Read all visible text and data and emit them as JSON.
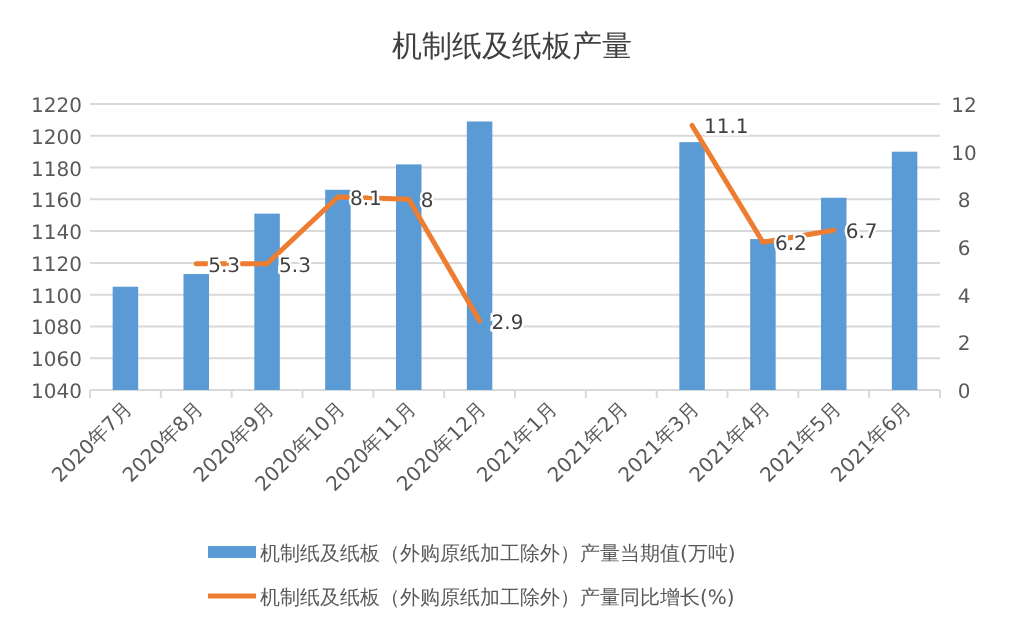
{
  "chart_data": {
    "type": "bar",
    "title": "机制纸及纸板产量",
    "categories": [
      "2020年7月",
      "2020年8月",
      "2020年9月",
      "2020年10月",
      "2020年11月",
      "2020年12月",
      "2021年1月",
      "2021年2月",
      "2021年3月",
      "2021年4月",
      "2021年5月",
      "2021年6月"
    ],
    "series": [
      {
        "name": "机制纸及纸板（外购原纸加工除外）产量当期值(万吨)",
        "color": "#5b9bd5",
        "values": [
          1105,
          1113,
          1151,
          1166,
          1182,
          1209,
          null,
          null,
          1196,
          1135,
          1161,
          1190
        ]
      },
      {
        "name": "机制纸及纸板（外购原纸加工除外）产量同比增长(%)",
        "type": "line",
        "axis": "y2",
        "color": "#ed7d31",
        "data_labels": true,
        "values": [
          null,
          5.3,
          5.3,
          8.1,
          8,
          2.9,
          null,
          null,
          11.1,
          6.2,
          6.7,
          null
        ]
      }
    ],
    "ylim": [
      1040,
      1220
    ],
    "yticks": [
      1040,
      1060,
      1080,
      1100,
      1120,
      1140,
      1160,
      1180,
      1200,
      1220
    ],
    "y2lim": [
      0,
      12
    ],
    "y2ticks": [
      0,
      2,
      4,
      6,
      8,
      10,
      12
    ],
    "grid": "y",
    "legend": "bottom"
  }
}
